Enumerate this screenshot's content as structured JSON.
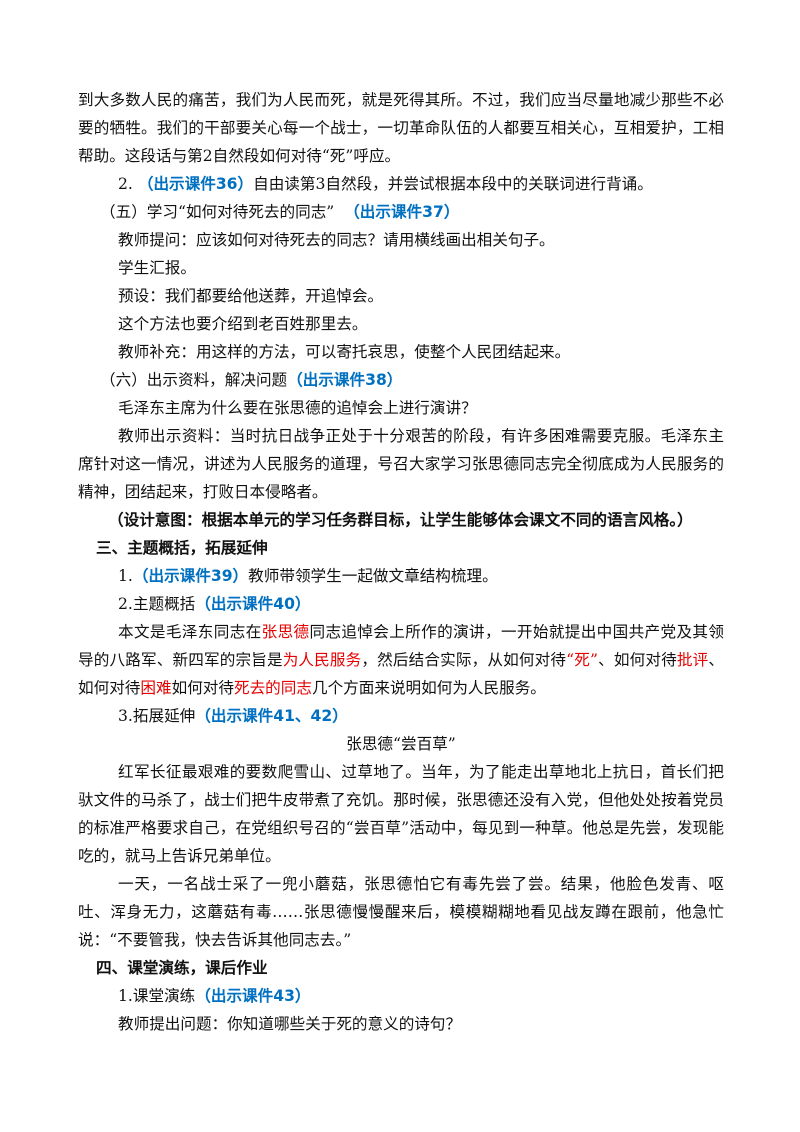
{
  "blocks": [
    [
      "到大多数人民的痛苦，我们为人民而死，就是死得其所。不过，我们应当尽量地减少那些不必要的牺牲。我们的干部要关心每一个战士，一切革命队伍的人都要互相关心，互相爱护，工相帮助。这段话与第2自然段如何对待“死”呼应。"
    ],
    [
      "2. ",
      "（出示课件36）",
      "自由读第3自然段，并尝试根据本段中的关联词进行背诵。"
    ],
    [
      "（五）学习“如何对待死去的同志”  ",
      "（出示课件37）"
    ],
    [
      "教师提问：应该如何对待死去的同志？请用横线画出相关句子。"
    ],
    [
      "学生汇报。"
    ],
    [
      "预设：我们都要给他送葬，开追悼会。"
    ],
    [
      "这个方法也要介绍到老百姓那里去。"
    ],
    [
      "教师补充：用这样的方法，可以寄托哀思，使整个人民团结起来。"
    ],
    [
      "（六）出示资料，解决问题",
      "（出示课件38）"
    ],
    [
      "毛泽东主席为什么要在张思德的追悼会上进行演讲？"
    ],
    [
      "教师出示资料：当时抗日战争正处于十分艰苦的阶段，有许多困难需要克服。毛泽东主席针对这一情况，讲述为人民服务的道理，号召大家学习张思德同志完全彻底成为人民服务的精神，团结起来，打败日本侵略者。"
    ],
    [
      "（设计意图：根据本单元的学习任务群目标，让学生能够体会课文不同的语言风格。）"
    ],
    [
      "三、主题概括，拓展延伸"
    ],
    [
      "1.",
      "（出示课件39）",
      "教师带领学生一起做文章结构梳理。"
    ],
    [
      "2.主题概括",
      "（出示课件40）"
    ],
    [
      "本文是毛泽东同志在",
      "张思德",
      "同志追悼会上所作的演讲，一开始就提出中国共产党及其领导的八路军、新四军的宗旨是",
      "为人民服务",
      "，然后结合实际，从如何对待",
      "“死”",
      "、如何对待",
      "批评",
      "、如何对待",
      "困难",
      "如何对待",
      "死去的同志",
      "几个方面来说明如何为人民服务。"
    ],
    [
      "3.拓展延伸",
      "（出示课件41、42）"
    ],
    [
      "张思德“尝百草”"
    ],
    [
      "红军长征最艰难的要数爬雪山、过草地了。当年，为了能走出草地北上抗日，首长们把驮文件的马杀了，战士们把牛皮带煮了充饥。那时候，张思德还没有入党，但他处处按着党员的标准严格要求自己，在党组织号召的“尝百草”活动中，每见到一种草。他总是先尝，发现能吃的，就马上告诉兄弟单位。"
    ],
    [
      "一天，一名战士采了一兜小蘑菇，张思德怕它有毒先尝了尝。结果，他脸色发青、呕吐、浑身无力，这蘑菇有毒……张思德慢慢醒来后，模模糊糊地看见战友蹲在跟前，他急忙说：“不要管我，快去告诉其他同志去。”"
    ],
    [
      "四、课堂演练，课后作业"
    ],
    [
      "1.课堂演练",
      "（出示课件43）"
    ],
    [
      "教师提出问题：你知道哪些关于死的意义的诗句？"
    ]
  ]
}
